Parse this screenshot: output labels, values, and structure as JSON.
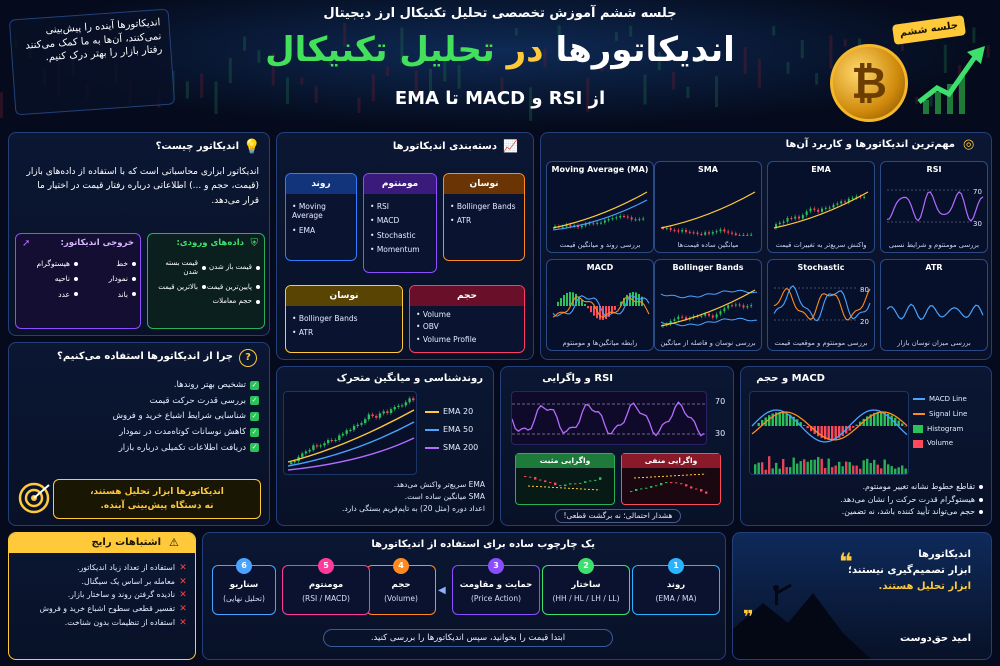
{
  "header": {
    "subtitle": "جلسه ششم آموزش تخصصی تحلیل تکنیکال ارز دیجیتال",
    "title_part1": "اندیکاتورها",
    "title_part2": "در",
    "title_part3": "تحلیل تکنیکال",
    "range": "از RSI و MACD تا EMA",
    "badge": "جلسه ششم",
    "quote": "اندیکاتورها آینده را پیش‌بینی نمی‌کنند، آن‌ها به ما کمک می‌کنند رفتار بازار را بهتر درک کنیم."
  },
  "what": {
    "title": "اندیکاتور چیست؟",
    "desc": "اندیکاتور ابزاری محاسباتی است که با استفاده از داده‌های بازار (قیمت، حجم و ...) اطلاعاتی درباره رفتار قیمت در اختیار ما قرار می‌دهد.",
    "inputs_title": "داده‌های ورودی:",
    "inputs": [
      "قیمت باز شدن",
      "قیمت بسته شدن",
      "پایین‌ترین قیمت",
      "بالاترین قیمت",
      "حجم معاملات"
    ],
    "outputs_title": "خروجی اندیکاتور:",
    "outputs": [
      "خط",
      "هیستوگرام",
      "نمودار",
      "ناحیه",
      "باند",
      "عدد"
    ]
  },
  "categories": {
    "title": "دسته‌بندی اندیکاتورها",
    "trend": {
      "name": "روند",
      "items": [
        "Moving Average",
        "EMA"
      ]
    },
    "momentum": {
      "name": "مومنتوم",
      "items": [
        "RSI",
        "MACD",
        "Stochastic",
        "Momentum"
      ]
    },
    "volatility": {
      "name": "نوسان",
      "items": [
        "Bollinger Bands",
        "ATR"
      ]
    },
    "volatility2": {
      "name": "نوسان",
      "items": [
        "Bollinger Bands",
        "ATR"
      ]
    },
    "volume": {
      "name": "حجم",
      "items": [
        "Volume",
        "OBV",
        "Volume Profile"
      ]
    }
  },
  "important": {
    "title": "مهم‌ترین اندیکاتورها و کاربرد آن‌ها",
    "cards": [
      {
        "name": "RSI",
        "caption": "بررسی مومنتوم و شرایط نسبی",
        "hi": "70",
        "lo": "30"
      },
      {
        "name": "EMA",
        "caption": "واکنش سریع‌تر به تغییرات قیمت"
      },
      {
        "name": "SMA",
        "caption": "میانگین ساده قیمت‌ها"
      },
      {
        "name": "Moving Average (MA)",
        "caption": "بررسی روند و میانگین قیمت"
      },
      {
        "name": "ATR",
        "caption": "بررسی میزان نوسان بازار"
      },
      {
        "name": "Stochastic",
        "caption": "بررسی مومنتوم و موقعیت قیمت",
        "hi": "80",
        "lo": "20"
      },
      {
        "name": "Bollinger Bands",
        "caption": "بررسی نوسان و فاصله از میانگین"
      },
      {
        "name": "MACD",
        "caption": "رابطه میانگین‌ها و مومنتوم"
      }
    ]
  },
  "why": {
    "title": "چرا از اندیکاتورها استفاده می‌کنیم؟",
    "items": [
      "تشخیص بهتر روندها.",
      "بررسی قدرت حرکت قیمت",
      "شناسایی شرایط اشباع خرید و فروش",
      "کاهش نوسانات کوتاه‌مدت در نمودار",
      "دریافت اطلاعات تکمیلی درباره بازار"
    ],
    "note_line1": "اندیکاتورها ابزار تحلیل هستند،",
    "note_line2": "نه دستگاه پیش‌بینی آینده."
  },
  "trendpanel": {
    "title": "روندشناسی و میانگین متحرک",
    "legend": [
      "EMA 20",
      "EMA 50",
      "SMA 200"
    ],
    "notes": [
      "EMA سریع‌تر واکنش می‌دهد.",
      "SMA میانگین ساده است.",
      "اعداد دوره (مثل 20) به تایم‌فریم بستگی دارد."
    ]
  },
  "rsipanel": {
    "title": "RSI و واگرایی",
    "hi": "70",
    "lo": "30",
    "pos": "واگرایی مثبت",
    "neg": "واگرایی منفی",
    "warn": "هشدار احتمالی؛ نه برگشت قطعی!"
  },
  "macdpanel": {
    "title": "MACD و حجم",
    "legend": [
      "MACD Line",
      "Signal Line",
      "Histogram",
      "Volume"
    ],
    "notes": [
      "تقاطع خطوط نشانه تغییر مومنتوم.",
      "هیستوگرام قدرت حرکت را نشان می‌دهد.",
      "حجم می‌تواند تأیید کننده باشد، نه تضمین."
    ]
  },
  "mistakes": {
    "title": "اشتباهات رایج",
    "items": [
      "استفاده از تعداد زیاد اندیکاتور.",
      "معامله بر اساس یک سیگنال.",
      "نادیده گرفتن روند و ساختار بازار.",
      "تفسیر قطعی سطوح اشباع خرید و فروش",
      "استفاده از تنظیمات بدون شناخت."
    ]
  },
  "framework": {
    "title": "یک چارچوب ساده برای استفاده از اندیکاتورها",
    "steps": [
      {
        "n": "1",
        "a": "روند",
        "b": "(EMA / MA)"
      },
      {
        "n": "2",
        "a": "ساختار",
        "b": "(HH / HL / LH / LL)"
      },
      {
        "n": "3",
        "a": "حمایت و مقاومت",
        "b": "(Price Action)"
      },
      {
        "n": "4",
        "a": "حجم",
        "b": "(Volume)"
      },
      {
        "n": "5",
        "a": "مومنتوم",
        "b": "(RSI / MACD)"
      },
      {
        "n": "6",
        "a": "سناریو",
        "b": "(تحلیل نهایی)"
      }
    ],
    "footer": "ابتدا قیمت را بخوانید، سپس اندیکاتورها را بررسی کنید."
  },
  "quote2": {
    "line1": "اندیکاتورها",
    "line2": "ابزار تصمیم‌گیری نیستند؛",
    "line3": "ابزار تحلیل هستند.",
    "author": "امید حق‌دوست"
  },
  "colors": {
    "accent": "#ffc93a",
    "green": "#3ee06d",
    "blue": "#4aa3ff",
    "purple": "#b46bff",
    "red": "#ff4a5b"
  }
}
